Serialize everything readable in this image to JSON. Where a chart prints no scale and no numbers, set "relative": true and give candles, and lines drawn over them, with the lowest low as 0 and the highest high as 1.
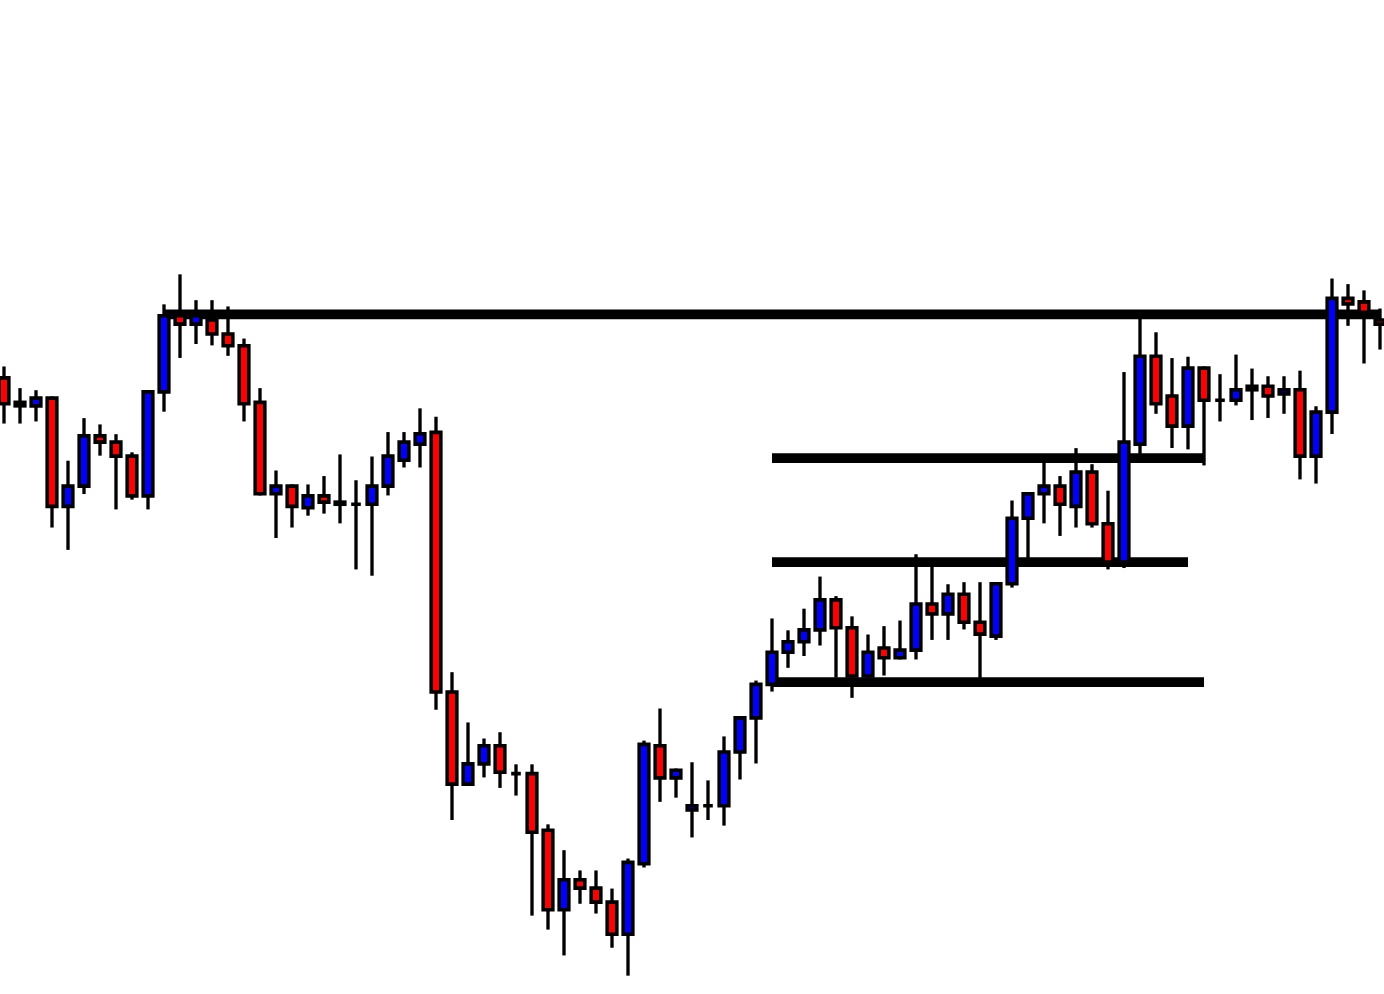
{
  "chart_data": {
    "type": "candlestick",
    "relative": true,
    "categories": [
      null,
      null,
      null,
      null,
      null,
      null,
      null,
      null,
      null,
      null,
      null,
      null,
      null,
      null,
      null,
      null,
      null,
      null,
      null,
      null,
      null,
      null,
      null,
      null,
      null,
      null,
      null,
      null,
      null,
      null,
      null,
      null,
      null,
      null,
      null,
      null,
      null,
      null,
      null,
      null,
      null,
      null,
      null,
      null,
      null,
      null,
      null,
      null,
      null,
      null,
      null,
      null,
      null,
      null,
      null,
      null,
      null,
      null,
      null,
      null,
      null,
      null,
      null,
      null,
      null,
      null,
      null,
      null,
      null,
      null,
      null,
      null,
      null,
      null,
      null,
      null,
      null,
      null,
      null,
      null,
      null,
      null,
      null,
      null,
      null,
      null,
      null
    ],
    "ohlc": [
      [
        0.854,
        0.868,
        0.791,
        0.817
      ],
      [
        0.819,
        0.837,
        0.791,
        0.814
      ],
      [
        0.814,
        0.834,
        0.794,
        0.825
      ],
      [
        0.825,
        0.825,
        0.642,
        0.67
      ],
      [
        0.67,
        0.733,
        0.61,
        0.699
      ],
      [
        0.699,
        0.794,
        0.69,
        0.771
      ],
      [
        0.771,
        0.785,
        0.745,
        0.762
      ],
      [
        0.762,
        0.771,
        0.668,
        0.742
      ],
      [
        0.742,
        0.745,
        0.682,
        0.685
      ],
      [
        0.685,
        0.834,
        0.668,
        0.834
      ],
      [
        0.834,
        0.957,
        0.808,
        0.943
      ],
      [
        0.943,
        1.0,
        0.885,
        0.931
      ],
      [
        0.931,
        0.963,
        0.905,
        0.943
      ],
      [
        0.937,
        0.963,
        0.903,
        0.917
      ],
      [
        0.917,
        0.954,
        0.888,
        0.9
      ],
      [
        0.9,
        0.908,
        0.794,
        0.817
      ],
      [
        0.819,
        0.837,
        0.688,
        0.688
      ],
      [
        0.688,
        0.719,
        0.627,
        0.699
      ],
      [
        0.699,
        0.699,
        0.642,
        0.67
      ],
      [
        0.668,
        0.699,
        0.659,
        0.685
      ],
      [
        0.685,
        0.711,
        0.662,
        0.676
      ],
      [
        0.676,
        0.742,
        0.648,
        0.673
      ],
      [
        0.673,
        0.705,
        0.582,
        0.673
      ],
      [
        0.673,
        0.739,
        0.573,
        0.699
      ],
      [
        0.699,
        0.774,
        0.688,
        0.742
      ],
      [
        0.736,
        0.774,
        0.728,
        0.762
      ],
      [
        0.759,
        0.808,
        0.728,
        0.774
      ],
      [
        0.776,
        0.796,
        0.381,
        0.404
      ],
      [
        0.404,
        0.43,
        0.223,
        0.272
      ],
      [
        0.272,
        0.358,
        0.272,
        0.301
      ],
      [
        0.301,
        0.335,
        0.284,
        0.327
      ],
      [
        0.327,
        0.344,
        0.269,
        0.289
      ],
      [
        0.287,
        0.298,
        0.258,
        0.287
      ],
      [
        0.287,
        0.298,
        0.086,
        0.203
      ],
      [
        0.206,
        0.212,
        0.066,
        0.092
      ],
      [
        0.092,
        0.175,
        0.029,
        0.135
      ],
      [
        0.135,
        0.146,
        0.103,
        0.123
      ],
      [
        0.123,
        0.146,
        0.089,
        0.103
      ],
      [
        0.103,
        0.12,
        0.04,
        0.057
      ],
      [
        0.057,
        0.163,
        0.0,
        0.16
      ],
      [
        0.158,
        0.332,
        0.155,
        0.329
      ],
      [
        0.327,
        0.378,
        0.249,
        0.281
      ],
      [
        0.281,
        0.292,
        0.255,
        0.292
      ],
      [
        0.235,
        0.301,
        0.198,
        0.241
      ],
      [
        0.241,
        0.275,
        0.223,
        0.241
      ],
      [
        0.241,
        0.338,
        0.215,
        0.318
      ],
      [
        0.318,
        0.367,
        0.281,
        0.367
      ],
      [
        0.367,
        0.418,
        0.304,
        0.415
      ],
      [
        0.415,
        0.507,
        0.407,
        0.461
      ],
      [
        0.461,
        0.49,
        0.441,
        0.476
      ],
      [
        0.476,
        0.521,
        0.458,
        0.493
      ],
      [
        0.493,
        0.567,
        0.473,
        0.536
      ],
      [
        0.536,
        0.539,
        0.427,
        0.496
      ],
      [
        0.496,
        0.51,
        0.398,
        0.427
      ],
      [
        0.427,
        0.484,
        0.427,
        0.461
      ],
      [
        0.467,
        0.496,
        0.43,
        0.453
      ],
      [
        0.453,
        0.504,
        0.453,
        0.464
      ],
      [
        0.464,
        0.599,
        0.453,
        0.53
      ],
      [
        0.53,
        0.587,
        0.481,
        0.516
      ],
      [
        0.516,
        0.556,
        0.481,
        0.544
      ],
      [
        0.544,
        0.559,
        0.496,
        0.504
      ],
      [
        0.504,
        0.559,
        0.421,
        0.487
      ],
      [
        0.484,
        0.559,
        0.481,
        0.559
      ],
      [
        0.559,
        0.676,
        0.556,
        0.653
      ],
      [
        0.653,
        0.688,
        0.593,
        0.688
      ],
      [
        0.688,
        0.733,
        0.648,
        0.699
      ],
      [
        0.699,
        0.711,
        0.63,
        0.673
      ],
      [
        0.67,
        0.751,
        0.642,
        0.719
      ],
      [
        0.719,
        0.728,
        0.642,
        0.645
      ],
      [
        0.645,
        0.69,
        0.582,
        0.59
      ],
      [
        0.59,
        0.86,
        0.584,
        0.762
      ],
      [
        0.759,
        0.937,
        0.745,
        0.885
      ],
      [
        0.885,
        0.917,
        0.805,
        0.817
      ],
      [
        0.828,
        0.88,
        0.756,
        0.785
      ],
      [
        0.785,
        0.882,
        0.754,
        0.868
      ],
      [
        0.868,
        0.868,
        0.731,
        0.822
      ],
      [
        0.822,
        0.857,
        0.794,
        0.822
      ],
      [
        0.822,
        0.885,
        0.817,
        0.837
      ],
      [
        0.837,
        0.865,
        0.796,
        0.842
      ],
      [
        0.842,
        0.854,
        0.799,
        0.828
      ],
      [
        0.831,
        0.854,
        0.805,
        0.837
      ],
      [
        0.837,
        0.862,
        0.711,
        0.742
      ],
      [
        0.742,
        0.811,
        0.705,
        0.805
      ],
      [
        0.805,
        0.994,
        0.776,
        0.968
      ],
      [
        0.968,
        0.986,
        0.931,
        0.96
      ],
      [
        0.963,
        0.977,
        0.877,
        0.948
      ],
      [
        0.937,
        0.951,
        0.897,
        0.931
      ]
    ],
    "colors": [
      "#ff0000",
      "#ff0000",
      "#0000ff",
      "#ff0000",
      "#0000ff",
      "#0000ff",
      "#ff0000",
      "#ff0000",
      "#ff0000",
      "#0000ff",
      "#0000ff",
      "#ff0000",
      "#0000ff",
      "#ff0000",
      "#ff0000",
      "#ff0000",
      "#ff0000",
      "#0000ff",
      "#ff0000",
      "#0000ff",
      "#ff0000",
      "#000000",
      "#000000",
      "#0000ff",
      "#0000ff",
      "#0000ff",
      "#0000ff",
      "#ff0000",
      "#ff0000",
      "#0000ff",
      "#0000ff",
      "#ff0000",
      "#000000",
      "#ff0000",
      "#ff0000",
      "#0000ff",
      "#ff0000",
      "#ff0000",
      "#ff0000",
      "#0000ff",
      "#0000ff",
      "#ff0000",
      "#0000ff",
      "#0000ff",
      "#000000",
      "#0000ff",
      "#0000ff",
      "#0000ff",
      "#0000ff",
      "#0000ff",
      "#0000ff",
      "#0000ff",
      "#ff0000",
      "#ff0000",
      "#0000ff",
      "#ff0000",
      "#0000ff",
      "#0000ff",
      "#ff0000",
      "#0000ff",
      "#ff0000",
      "#ff0000",
      "#0000ff",
      "#0000ff",
      "#0000ff",
      "#0000ff",
      "#ff0000",
      "#0000ff",
      "#ff0000",
      "#ff0000",
      "#0000ff",
      "#0000ff",
      "#ff0000",
      "#ff0000",
      "#0000ff",
      "#ff0000",
      "#000000",
      "#0000ff",
      "#0000ff",
      "#ff0000",
      "#0000ff",
      "#ff0000",
      "#0000ff",
      "#0000ff",
      "#ff0000",
      "#ff0000",
      "#ff0000"
    ],
    "series": [
      {
        "type": "line",
        "color": "#000000",
        "values": [
          null,
          null,
          null,
          null,
          null,
          null,
          null,
          null,
          null,
          null,
          0.945,
          0.945,
          0.945,
          0.945,
          0.945,
          0.945,
          0.945,
          0.945,
          0.945,
          0.945,
          0.945,
          0.945,
          0.945,
          0.945,
          0.945,
          0.945,
          0.945,
          0.945,
          0.945,
          0.945,
          0.945,
          0.945,
          0.945,
          0.945,
          0.945,
          0.945,
          0.945,
          0.945,
          0.945,
          0.945,
          0.945,
          0.945,
          0.945,
          0.945,
          0.945,
          0.945,
          0.945,
          0.945,
          0.945,
          0.945,
          0.945,
          0.945,
          0.945,
          0.945,
          0.945,
          0.945,
          0.945,
          0.945,
          0.945,
          0.945,
          0.945,
          0.945,
          0.945,
          0.945,
          0.945,
          0.945,
          0.945,
          0.945,
          0.945,
          0.945,
          0.945,
          0.945,
          0.945,
          0.945,
          0.945,
          0.945,
          0.945,
          0.945,
          0.945,
          0.945,
          0.945,
          0.945,
          0.945,
          0.945,
          0.945,
          0.945,
          0.945
        ]
      },
      {
        "type": "line",
        "color": "#000000",
        "values": [
          null,
          null,
          null,
          null,
          null,
          null,
          null,
          null,
          null,
          null,
          null,
          null,
          null,
          null,
          null,
          null,
          null,
          null,
          null,
          null,
          null,
          null,
          null,
          null,
          null,
          null,
          null,
          null,
          null,
          null,
          null,
          null,
          null,
          null,
          null,
          null,
          null,
          null,
          null,
          null,
          null,
          null,
          null,
          null,
          null,
          null,
          null,
          null,
          0.739,
          0.739,
          0.739,
          0.739,
          0.739,
          0.739,
          0.739,
          0.739,
          0.739,
          0.739,
          0.739,
          0.739,
          0.739,
          0.739,
          0.739,
          0.739,
          0.739,
          0.739,
          0.739,
          0.739,
          0.739,
          0.739,
          0.739,
          0.739,
          0.739,
          0.739,
          0.739,
          0.739,
          null,
          null,
          null,
          null,
          null,
          null,
          null,
          null,
          null,
          null,
          null
        ]
      },
      {
        "type": "line",
        "color": "#000000",
        "values": [
          null,
          null,
          null,
          null,
          null,
          null,
          null,
          null,
          null,
          null,
          null,
          null,
          null,
          null,
          null,
          null,
          null,
          null,
          null,
          null,
          null,
          null,
          null,
          null,
          null,
          null,
          null,
          null,
          null,
          null,
          null,
          null,
          null,
          null,
          null,
          null,
          null,
          null,
          null,
          null,
          null,
          null,
          null,
          null,
          null,
          null,
          null,
          null,
          0.59,
          0.59,
          0.59,
          0.59,
          0.59,
          0.59,
          0.59,
          0.59,
          0.59,
          0.59,
          0.59,
          0.59,
          0.59,
          0.59,
          0.59,
          0.59,
          0.59,
          0.59,
          0.59,
          0.59,
          0.59,
          0.59,
          0.59,
          0.59,
          0.59,
          0.59,
          0.59,
          null,
          null,
          null,
          null,
          null,
          null,
          null,
          null,
          null,
          null,
          null,
          null
        ]
      },
      {
        "type": "line",
        "color": "#000000",
        "values": [
          null,
          null,
          null,
          null,
          null,
          null,
          null,
          null,
          null,
          null,
          null,
          null,
          null,
          null,
          null,
          null,
          null,
          null,
          null,
          null,
          null,
          null,
          null,
          null,
          null,
          null,
          null,
          null,
          null,
          null,
          null,
          null,
          null,
          null,
          null,
          null,
          null,
          null,
          null,
          null,
          null,
          null,
          null,
          null,
          null,
          null,
          null,
          null,
          0.418,
          0.418,
          0.418,
          0.418,
          0.418,
          0.418,
          0.418,
          0.418,
          0.418,
          0.418,
          0.418,
          0.418,
          0.418,
          0.418,
          0.418,
          0.418,
          0.418,
          0.418,
          0.418,
          0.418,
          0.418,
          0.418,
          0.418,
          0.418,
          0.418,
          0.418,
          0.418,
          0.418,
          null,
          null,
          null,
          null,
          null,
          null,
          null,
          null,
          null,
          null,
          null
        ]
      }
    ]
  }
}
